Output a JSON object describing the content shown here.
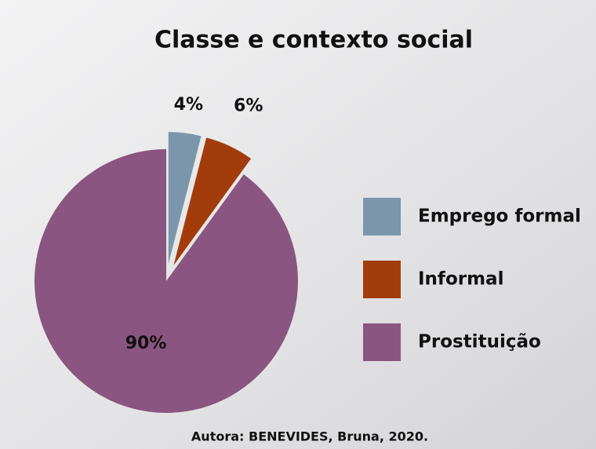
{
  "chart_data": {
    "type": "pie",
    "title": "Classe e contexto social",
    "categories": [
      "Emprego formal",
      "Informal",
      "Prostituição"
    ],
    "values": [
      4,
      6,
      90
    ],
    "value_labels": [
      "4%",
      "6%",
      "90%"
    ],
    "colors": [
      "#7b96aa",
      "#a23c0b",
      "#8a5580"
    ],
    "legend": "right",
    "source": "Autora: BENEVIDES, Bruna, 2020."
  }
}
